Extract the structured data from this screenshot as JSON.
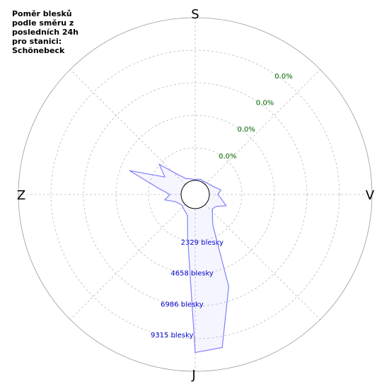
{
  "chart_data": {
    "type": "polar",
    "title": "Poměr blesků podle směru z posledních 24h pro stanici: Schönebeck",
    "directions": [
      "S",
      "V",
      "J",
      "Z"
    ],
    "angles": [
      0,
      10,
      20,
      30,
      40,
      50,
      60,
      70,
      80,
      90,
      100,
      110,
      120,
      130,
      140,
      150,
      160,
      170,
      180,
      190,
      200,
      210,
      220,
      230,
      240,
      250,
      260,
      270,
      280,
      290,
      300,
      310,
      320,
      330,
      340,
      350
    ],
    "values": [
      50,
      100,
      150,
      100,
      150,
      200,
      300,
      500,
      850,
      600,
      900,
      1340,
      700,
      600,
      900,
      1500,
      6000,
      10110,
      10300,
      2100,
      600,
      400,
      300,
      200,
      300,
      500,
      1200,
      800,
      1700,
      3990,
      1500,
      2340,
      800,
      300,
      200,
      100
    ],
    "color": "#8080ff",
    "ylim": [
      0,
      11644
    ],
    "yticks": [
      {
        "value": 2329,
        "label": "2329 blesky"
      },
      {
        "value": 4658,
        "label": "4658 blesky"
      },
      {
        "value": 6986,
        "label": "6986 blesky"
      },
      {
        "value": 9315,
        "label": "9315 blesky"
      }
    ],
    "percent_labels": [
      "0.0%",
      "0.0%",
      "0.0%",
      "0.0%"
    ],
    "grid": true
  }
}
